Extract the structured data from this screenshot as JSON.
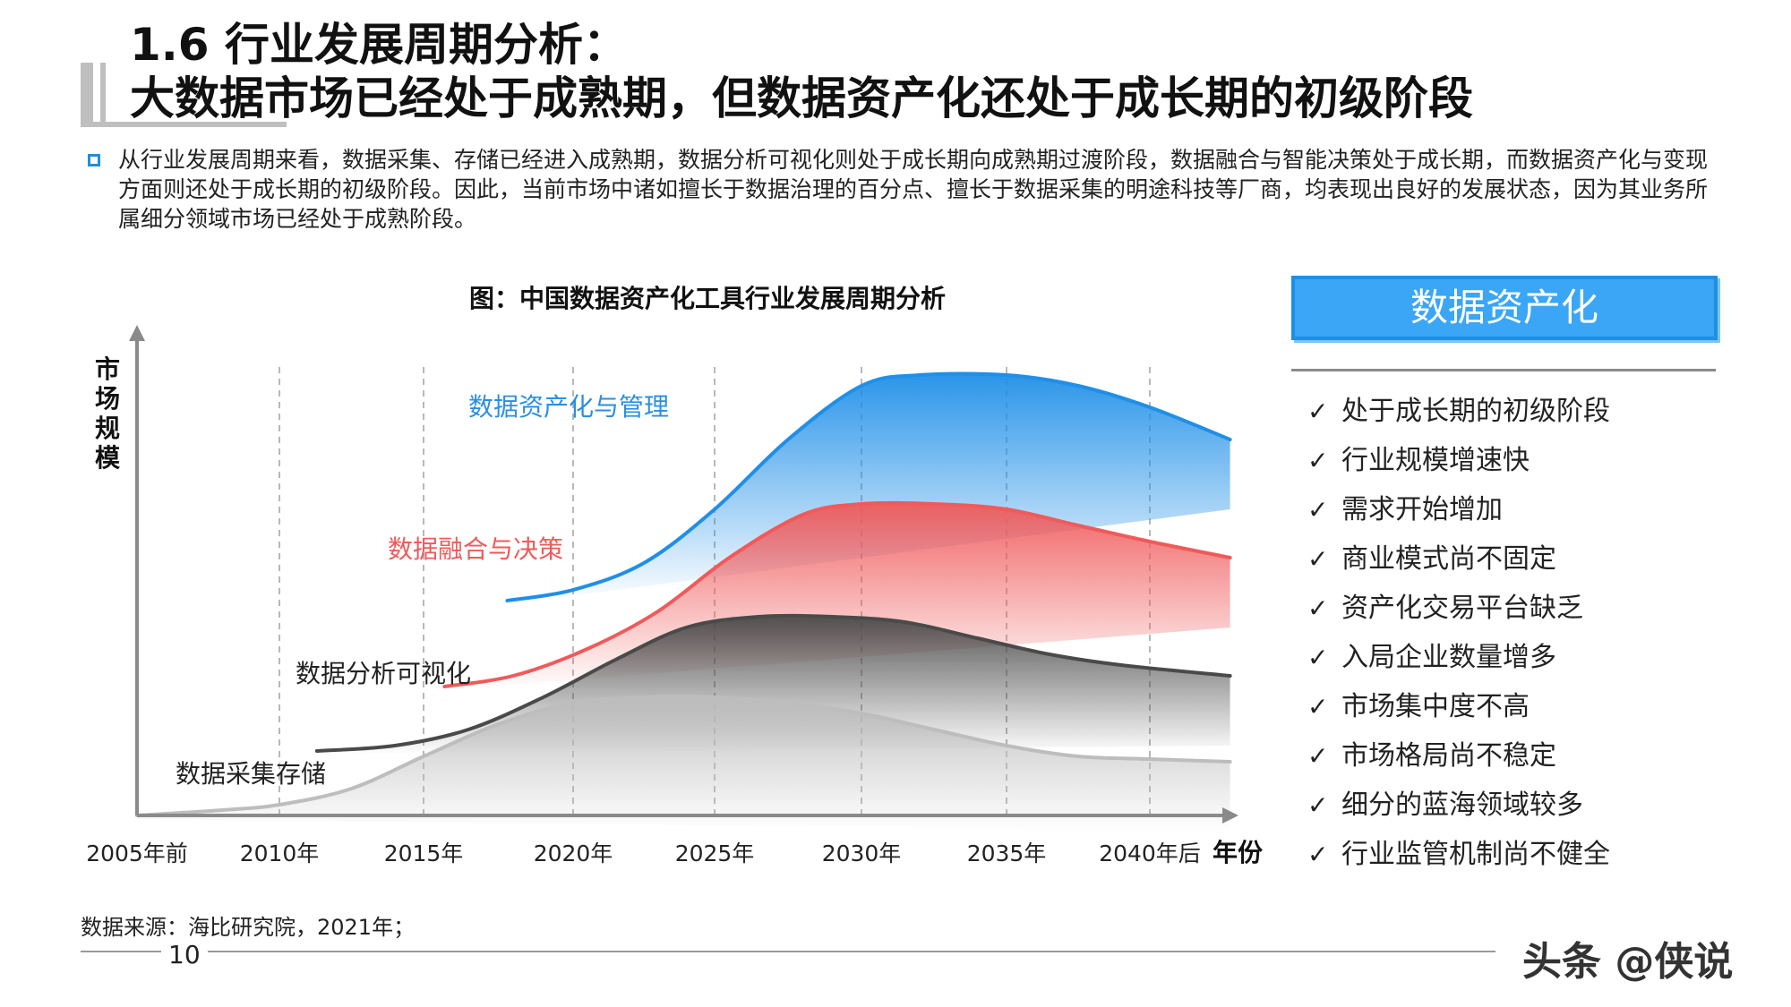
{
  "header": {
    "title_line1": "1.6 行业发展周期分析：",
    "title_line2": "大数据市场已经处于成熟期，但数据资产化还处于成长期的初级阶段"
  },
  "intro": "从行业发展周期来看，数据采集、存储已经进入成熟期，数据分析可视化则处于成长期向成熟期过渡阶段，数据融合与智能决策处于成长期，而数据资产化与变现方面则还处于成长期的初级阶段。因此，当前市场中诸如擅长于数据治理的百分点、擅长于数据采集的明途科技等厂商，均表现出良好的发展状态，因为其业务所属细分领域市场已经处于成熟阶段。",
  "chart_data": {
    "type": "area",
    "title": "图：中国数据资产化工具行业发展周期分析",
    "ylabel": "市场规模",
    "xlabel": "年份",
    "categories": [
      "2005年前",
      "2010年",
      "2015年",
      "2020年",
      "2025年",
      "2030年",
      "2035年",
      "2040年后"
    ],
    "series": [
      {
        "name": "数据资产化与管理",
        "color": "#1f8fe8",
        "x": [
          2017.8,
          2020,
          2022.5,
          2025,
          2027.5,
          2030,
          2032,
          2035,
          2037.5,
          2040,
          2042.8
        ],
        "y": [
          40,
          42,
          47,
          57,
          70,
          80,
          82,
          82,
          80,
          76,
          70
        ]
      },
      {
        "name": "数据融合与决策",
        "color": "#f05a5a",
        "x": [
          2015.7,
          2018,
          2020.5,
          2023,
          2025.5,
          2028,
          2030,
          2032.5,
          2035,
          2037.5,
          2040,
          2042.8
        ],
        "y": [
          24,
          26,
          31,
          38,
          48,
          56,
          58,
          58,
          57,
          54,
          51,
          48
        ]
      },
      {
        "name": "数据分析可视化",
        "color": "#4a4a4a",
        "x": [
          2011.3,
          2014,
          2016.5,
          2019,
          2021.5,
          2024,
          2026.5,
          2029,
          2031.5,
          2034,
          2036.5,
          2039,
          2042.8
        ],
        "y": [
          12,
          13,
          16,
          22,
          29,
          35,
          37,
          37,
          36,
          33,
          30,
          28,
          26
        ]
      },
      {
        "name": "数据采集存储",
        "color": "#bdbdbd",
        "x": [
          2005,
          2008,
          2010,
          2012.5,
          2015,
          2017.5,
          2020,
          2022.5,
          2025,
          2027.5,
          2030,
          2032.5,
          2035,
          2037.5,
          2040,
          2042.8
        ],
        "y": [
          0,
          1,
          2,
          5,
          11,
          17,
          21,
          22,
          22,
          21,
          19,
          16,
          13,
          11,
          10.5,
          10
        ]
      }
    ],
    "grid": "vertical-dashed",
    "legend": "inline-labels"
  },
  "panel": {
    "title": "数据资产化",
    "check": "✓",
    "items": [
      "处于成长期的初级阶段",
      "行业规模增速快",
      "需求开始增加",
      "商业模式尚不固定",
      "资产化交易平台缺乏",
      "入局企业数量增多",
      "市场集中度不高",
      "市场格局尚不稳定",
      "细分的蓝海领域较多",
      "行业监管机制尚不健全"
    ]
  },
  "footer": {
    "source": "数据来源：海比研究院，2021年；",
    "page": "10",
    "watermark": "头条 @侠说"
  }
}
